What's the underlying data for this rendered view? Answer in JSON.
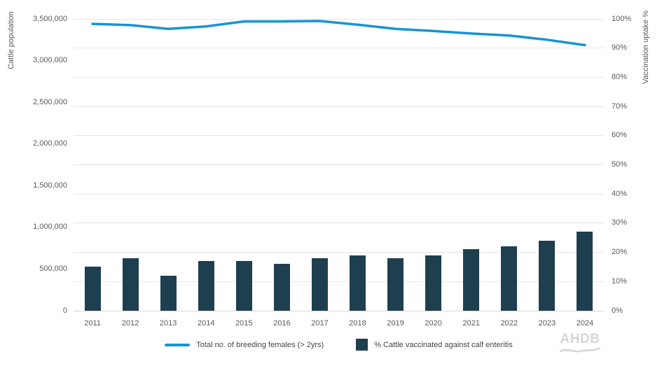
{
  "chart_data": {
    "type": "bar",
    "subtype": "combo-bar-line-dual-axis",
    "categories": [
      "2011",
      "2012",
      "2013",
      "2014",
      "2015",
      "2016",
      "2017",
      "2018",
      "2019",
      "2020",
      "2021",
      "2022",
      "2023",
      "2024"
    ],
    "series": [
      {
        "name": "Total no. of breeding females (> 2yrs)",
        "type": "line",
        "axis": "left",
        "color": "#1595d4",
        "values": [
          3440000,
          3425000,
          3380000,
          3410000,
          3470000,
          3470000,
          3475000,
          3430000,
          3380000,
          3355000,
          3325000,
          3300000,
          3250000,
          3185000
        ]
      },
      {
        "name": "% Cattle vaccinated against calf enteritis",
        "type": "bar",
        "axis": "right",
        "color": "#1e3f4f",
        "values": [
          15,
          18,
          12,
          17,
          17,
          16,
          18,
          19,
          18,
          19,
          21,
          22,
          24,
          27
        ]
      }
    ],
    "left_axis": {
      "label": "Cattle population",
      "min": 0,
      "max": 3500000,
      "tick_step": 500000,
      "tick_labels": [
        "0",
        "500,000",
        "1,000,000",
        "1,500,000",
        "2,000,000",
        "2,500,000",
        "3,000,000",
        "3,500,000"
      ]
    },
    "right_axis": {
      "label": "Vaccination uptake %",
      "min": 0,
      "max": 100,
      "tick_step": 10,
      "tick_labels": [
        "0%",
        "10%",
        "20%",
        "30%",
        "40%",
        "50%",
        "60%",
        "70%",
        "80%",
        "90%",
        "100%"
      ]
    },
    "grid": "horizontal gridlines at right-axis ticks",
    "legend_position": "bottom-center",
    "title": ""
  },
  "legend": {
    "line_label": "Total no. of breeding females (> 2yrs)",
    "bar_label": "% Cattle vaccinated against calf enteritis"
  },
  "branding": {
    "logo_text": "AHDB"
  },
  "colors": {
    "line": "#1595d4",
    "bar": "#1e3f4f",
    "gridline": "#e6e6e6",
    "axis_text": "#595959"
  }
}
